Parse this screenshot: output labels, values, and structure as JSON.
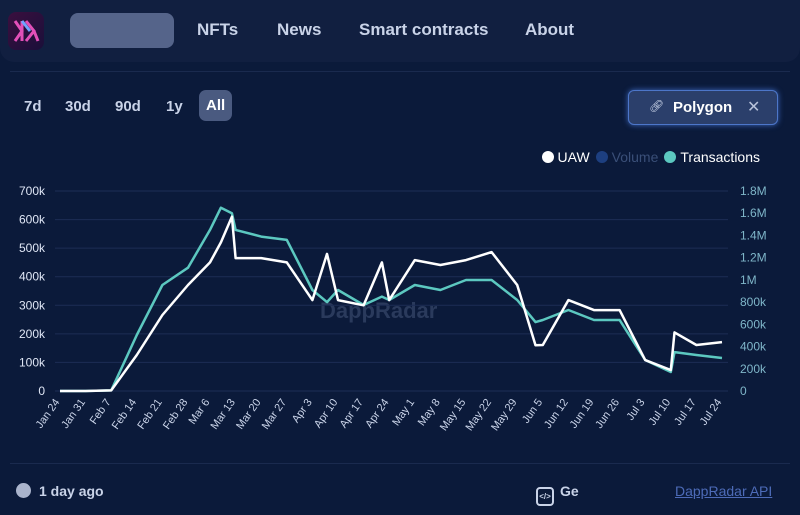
{
  "header": {
    "nav": [
      "NFTs",
      "News",
      "Smart contracts",
      "About"
    ]
  },
  "filters": {
    "ranges": [
      "7d",
      "30d",
      "90d",
      "1y",
      "All"
    ],
    "active_range": "All",
    "chain_chip": {
      "label": "Polygon",
      "icon": "link-icon",
      "close_icon": "close-icon"
    }
  },
  "footer": {
    "updated": "1 day ago",
    "api_label_partial": "Ge",
    "api_link": "DappRadar API",
    "watermark": "DappRadar"
  },
  "colors": {
    "uaw": "#ffffff",
    "volume": "#1d3f80",
    "transactions": "#5cc8c0",
    "background": "#0b1a3a"
  },
  "chart_data": {
    "type": "line",
    "legend": [
      {
        "name": "UAW",
        "color": "#ffffff",
        "enabled": true
      },
      {
        "name": "Volume",
        "color": "#1d3f80",
        "enabled": false
      },
      {
        "name": "Transactions",
        "color": "#5cc8c0",
        "enabled": true
      }
    ],
    "legend_position": "top-right",
    "x_ticks": [
      "Jan 24",
      "Jan 31",
      "Feb 7",
      "Feb 14",
      "Feb 21",
      "Feb 28",
      "Mar 6",
      "Mar 13",
      "Mar 20",
      "Mar 27",
      "Apr 3",
      "Apr 10",
      "Apr 17",
      "Apr 24",
      "May 1",
      "May 8",
      "May 15",
      "May 22",
      "May 29",
      "Jun 5",
      "Jun 12",
      "Jun 19",
      "Jun 26",
      "Jul 3",
      "Jul 10",
      "Jul 17",
      "Jul 24"
    ],
    "y_left": {
      "ticks": [
        "0",
        "100k",
        "200k",
        "300k",
        "400k",
        "500k",
        "600k",
        "700k"
      ],
      "range": [
        0,
        700000
      ]
    },
    "y_right": {
      "ticks": [
        "0",
        "200k",
        "400k",
        "600k",
        "800k",
        "1M",
        "1.2M",
        "1.4M",
        "1.6M",
        "1.8M"
      ],
      "range": [
        0,
        1800000
      ]
    },
    "grid": true,
    "x": [
      "Jan 24",
      "Jan 31",
      "Feb 7",
      "Feb 14",
      "Feb 21",
      "Feb 28",
      "Mar 6",
      "Mar 9",
      "Mar 12",
      "Mar 13",
      "Mar 20",
      "Mar 27",
      "Apr 3",
      "Apr 7",
      "Apr 10",
      "Apr 17",
      "Apr 22",
      "Apr 24",
      "May 1",
      "May 8",
      "May 15",
      "May 22",
      "May 29",
      "Jun 3",
      "Jun 5",
      "Jun 12",
      "Jun 19",
      "Jun 26",
      "Jul 3",
      "Jul 10",
      "Jul 11",
      "Jul 17",
      "Jul 24"
    ],
    "series": [
      {
        "name": "UAW",
        "axis": "left",
        "values": [
          0,
          0,
          2000,
          126000,
          266000,
          371000,
          450000,
          520000,
          610000,
          465000,
          465000,
          450000,
          318000,
          480000,
          318000,
          300000,
          450000,
          318000,
          458000,
          441000,
          458000,
          486000,
          371000,
          160000,
          161000,
          318000,
          283000,
          283000,
          108000,
          73000,
          205000,
          161000,
          171000
        ]
      },
      {
        "name": "Transactions",
        "axis": "right",
        "values": [
          0,
          0,
          5000,
          504000,
          954000,
          1110000,
          1450000,
          1650000,
          1600000,
          1450000,
          1390000,
          1360000,
          909000,
          800000,
          909000,
          774000,
          850000,
          819000,
          954000,
          909000,
          999000,
          999000,
          819000,
          620000,
          639000,
          729000,
          639000,
          639000,
          279000,
          171000,
          350000,
          324000,
          297000
        ]
      }
    ]
  }
}
